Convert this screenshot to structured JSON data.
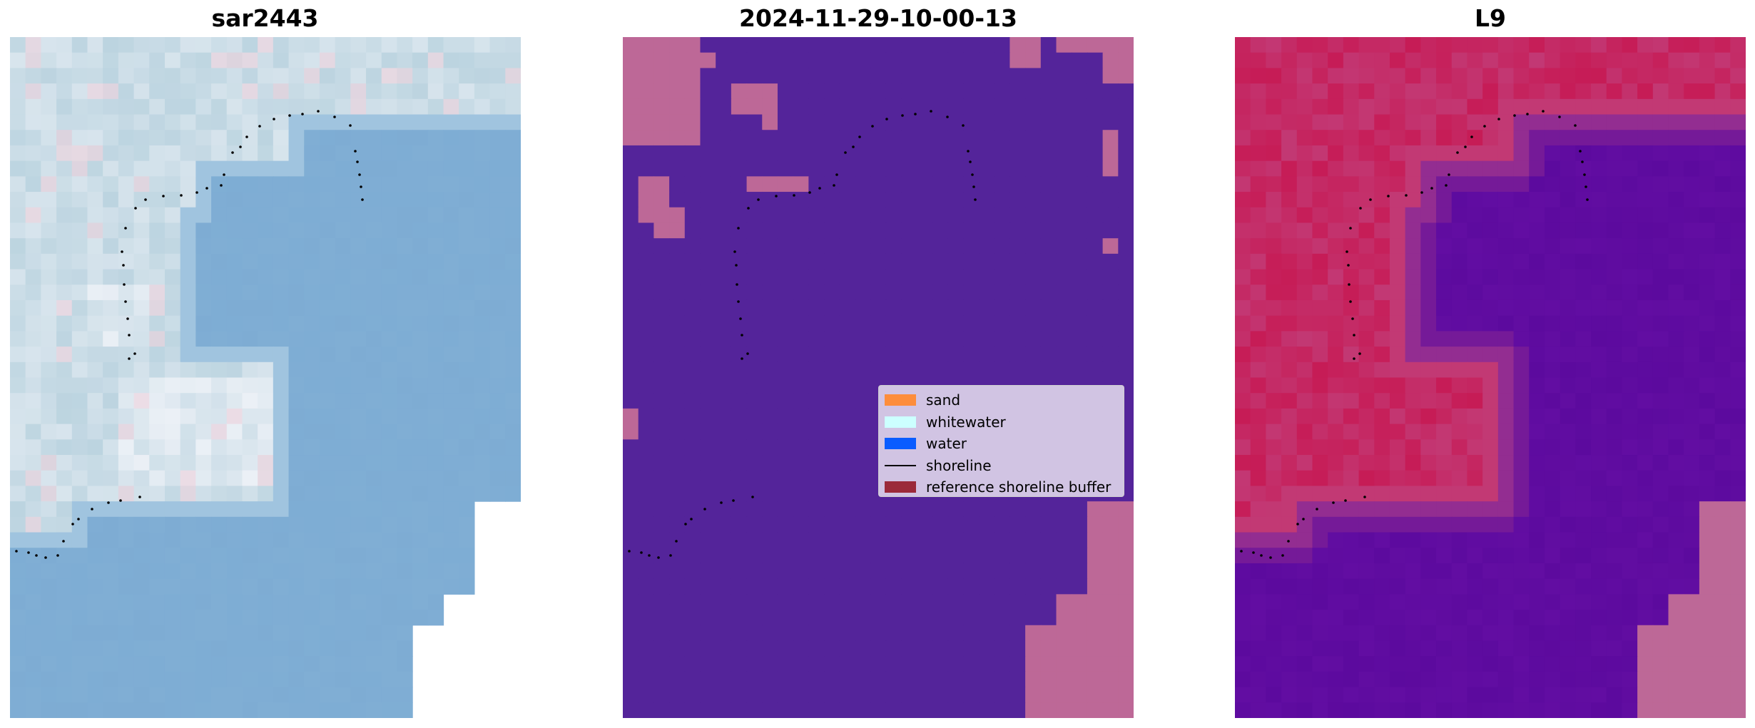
{
  "panels": [
    {
      "title": "sar2443"
    },
    {
      "title": "2024-11-29-10-00-13"
    },
    {
      "title": "L9"
    }
  ],
  "legend": {
    "items": [
      {
        "label": "sand",
        "color": "#fd8d3c",
        "kind": "patch"
      },
      {
        "label": "whitewater",
        "color": "#ccffff",
        "kind": "patch"
      },
      {
        "label": "water",
        "color": "#0a5cff",
        "kind": "patch"
      },
      {
        "label": "shoreline",
        "color": "#000000",
        "kind": "line"
      },
      {
        "label": "reference shoreline buffer",
        "color": "#9b2a3a",
        "kind": "patch"
      }
    ]
  },
  "colors": {
    "water_rgb": "#80aed4",
    "land_rgb": "#bcd4e0",
    "class_background": "#54249a",
    "class_pink": "#bd6897",
    "index_water": "#5c0a9e",
    "index_land": "#c8104a",
    "mid_pink": "#c04a86"
  }
}
